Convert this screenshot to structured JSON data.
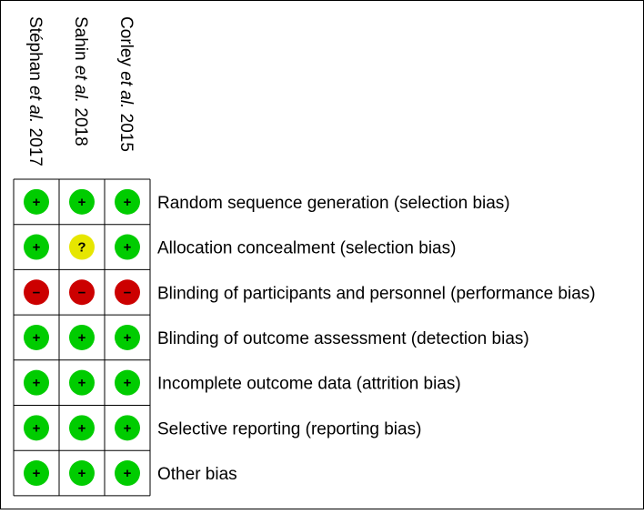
{
  "studies": [
    {
      "name": "Stéphan",
      "etal": "et al.",
      "year": "2017"
    },
    {
      "name": "Sahin",
      "etal": "et al.",
      "year": "2018"
    },
    {
      "name": "Corley",
      "etal": "et al.",
      "year": "2015"
    }
  ],
  "domains": [
    "Random sequence generation (selection bias)",
    "Allocation concealment (selection bias)",
    "Blinding of participants and personnel (performance bias)",
    "Blinding of outcome assessment (detection bias)",
    "Incomplete outcome data (attrition bias)",
    "Selective reporting (reporting bias)",
    "Other bias"
  ],
  "judgments": [
    [
      "+",
      "+",
      "+"
    ],
    [
      "+",
      "?",
      "+"
    ],
    [
      "−",
      "−",
      "−"
    ],
    [
      "+",
      "+",
      "+"
    ],
    [
      "+",
      "+",
      "+"
    ],
    [
      "+",
      "+",
      "+"
    ],
    [
      "+",
      "+",
      "+"
    ]
  ],
  "colors": {
    "+": "#00cc00",
    "?": "#e6e600",
    "−": "#cc0000"
  }
}
